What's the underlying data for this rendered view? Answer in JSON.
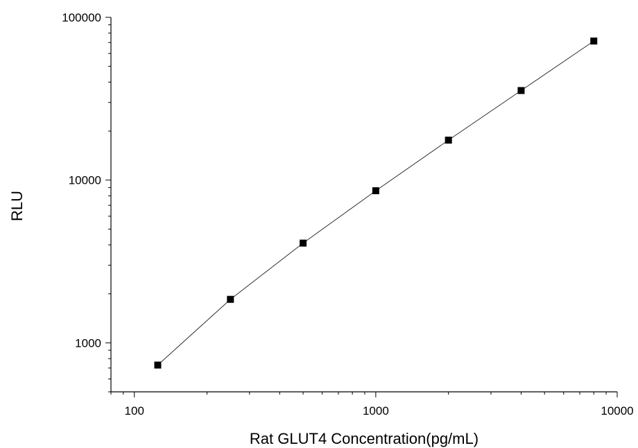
{
  "chart_data": {
    "type": "scatter",
    "title": "",
    "xlabel": "Rat GLUT4 Concentration(pg/mL)",
    "ylabel": "RLU",
    "xscale": "log",
    "yscale": "log",
    "xlim": [
      80,
      10000
    ],
    "ylim": [
      500,
      100000
    ],
    "xticks": [
      100,
      1000,
      10000
    ],
    "xtick_labels": [
      "100",
      "1000",
      "10000"
    ],
    "yticks": [
      1000,
      10000,
      100000
    ],
    "ytick_labels": [
      "1000",
      "10000",
      "100000"
    ],
    "grid": false,
    "legend": "none",
    "line_connects_points": true,
    "marker": "square",
    "color": "#000000",
    "series": [
      {
        "x": [
          125,
          250,
          500,
          1000,
          2000,
          4000,
          8000
        ],
        "y": [
          730,
          1850,
          4100,
          8600,
          17600,
          35500,
          71500
        ]
      }
    ]
  }
}
